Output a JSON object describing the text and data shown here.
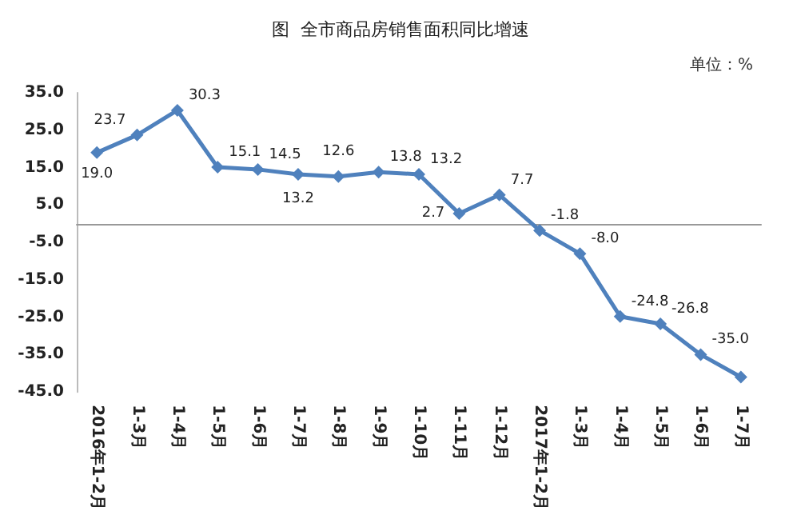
{
  "chart_data": {
    "type": "line",
    "title": "图  全市商品房销售面积同比增速",
    "annotations": [
      "单位：%"
    ],
    "categories": [
      "2016年1-2月",
      "1-3月",
      "1-4月",
      "1-5月",
      "1-6月",
      "1-7月",
      "1-8月",
      "1-9月",
      "1-10月",
      "1-11月",
      "1-12月",
      "2017年1-2月",
      "1-3月",
      "1-4月",
      "1-5月",
      "1-6月",
      "1-7月"
    ],
    "series": [
      {
        "color": "#4f81bd",
        "values": [
          19.0,
          23.7,
          30.3,
          15.1,
          14.5,
          13.2,
          12.6,
          13.8,
          13.2,
          2.7,
          7.7,
          -1.8,
          -8.0,
          -24.8,
          -26.8,
          -35.0,
          -41.0
        ],
        "value_labels": [
          "19.0",
          "23.7",
          "30.3",
          "15.1",
          "14.5",
          "13.2",
          "12.6",
          "13.8",
          "13.2",
          "2.7",
          "7.7",
          "-1.8",
          "-8.0",
          "-24.8",
          "-26.8",
          "-35.0",
          null
        ]
      }
    ],
    "ylim": [
      -45,
      35
    ],
    "yticks": [
      {
        "value": -45,
        "label": "-45.0"
      },
      {
        "value": -35,
        "label": "-35.0"
      },
      {
        "value": -25,
        "label": "-25.0"
      },
      {
        "value": -15,
        "label": "-15.0"
      },
      {
        "value": -5,
        "label": "-5.0"
      },
      {
        "value": 5,
        "label": "5.0"
      },
      {
        "value": 15,
        "label": "15.0"
      },
      {
        "value": 25,
        "label": "25.0"
      },
      {
        "value": 35,
        "label": "35.0"
      }
    ],
    "grid": false,
    "marker": "diamond",
    "line_style": "solid"
  }
}
